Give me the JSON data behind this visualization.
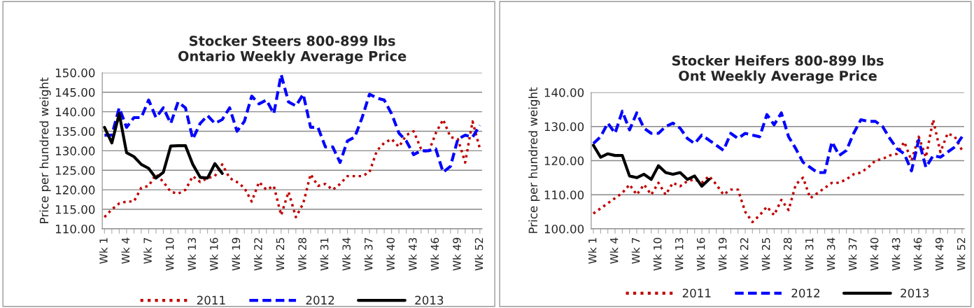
{
  "chart_data": [
    {
      "type": "line",
      "title": "Stocker Steers 800-899 lbs\nOntario Weekly Average Price",
      "ylabel": "Price per hundred weight",
      "categories": [
        "Wk 1",
        null,
        null,
        "Wk 4",
        null,
        null,
        "Wk 7",
        null,
        null,
        "Wk 10",
        null,
        null,
        "Wk 13",
        null,
        null,
        "Wk 16",
        null,
        null,
        "Wk 19",
        null,
        null,
        "Wk 22",
        null,
        null,
        "Wk 25",
        null,
        null,
        "Wk 28",
        null,
        null,
        "Wk 31",
        null,
        null,
        "Wk 34",
        null,
        null,
        "Wk 37",
        null,
        null,
        "Wk 40",
        null,
        null,
        "Wk 43",
        null,
        null,
        "Wk 46",
        null,
        null,
        "Wk 49",
        null,
        null,
        "Wk 52"
      ],
      "series": [
        {
          "name": "2011",
          "color": "#c00000",
          "line_style": "dotted",
          "values": [
            113,
            115,
            116.5,
            117,
            117,
            120.5,
            121,
            124,
            122,
            119.5,
            119,
            120,
            123.5,
            122,
            123,
            123.5,
            126.5,
            123,
            122,
            120.5,
            117,
            122,
            120,
            121,
            113.5,
            119.5,
            113,
            116.5,
            124,
            121,
            121.5,
            120,
            121.5,
            123.5,
            123.5,
            123.5,
            124.5,
            130,
            132,
            133,
            131,
            134,
            135,
            130.5,
            129.5,
            134.5,
            138,
            133.5,
            133,
            127,
            137.5,
            130.5
          ]
        },
        {
          "name": "2012",
          "color": "#0000ff",
          "line_style": "dashed",
          "values": [
            134,
            134,
            141,
            136,
            138.5,
            138.5,
            143,
            138.5,
            141,
            137,
            142.5,
            141,
            133,
            137,
            139,
            137,
            138,
            141,
            135,
            137.5,
            144,
            142,
            143,
            139.5,
            149.5,
            142.5,
            141.5,
            144.5,
            136,
            136,
            131,
            131,
            127,
            132.5,
            133.5,
            138.5,
            144.5,
            143.5,
            143,
            139.5,
            134.5,
            132.5,
            129,
            130,
            130,
            130.5,
            124.5,
            126,
            133,
            134,
            133.5,
            136.5
          ]
        },
        {
          "name": "2013",
          "color": "#000000",
          "line_style": "solid",
          "values": [
            136,
            132,
            139.5,
            129.5,
            128.5,
            126.5,
            125.5,
            123,
            124.5,
            131.2,
            131.3,
            131.3,
            126.5,
            123.2,
            123,
            126.7,
            124.2,
            null,
            null,
            null,
            null,
            null,
            null,
            null,
            null,
            null,
            null,
            null,
            null,
            null,
            null,
            null,
            null,
            null,
            null,
            null,
            null,
            null,
            null,
            null,
            null,
            null,
            null,
            null,
            null,
            null,
            null,
            null,
            null,
            null,
            null,
            null
          ]
        }
      ],
      "ylim": [
        110,
        150
      ],
      "yticks": [
        {
          "value": 110,
          "label": "110.00"
        },
        {
          "value": 115,
          "label": "115.00"
        },
        {
          "value": 120,
          "label": "120.00"
        },
        {
          "value": 125,
          "label": "125.00"
        },
        {
          "value": 130,
          "label": "130.00"
        },
        {
          "value": 135,
          "label": "135.00"
        },
        {
          "value": 140,
          "label": "140.00"
        },
        {
          "value": 145,
          "label": "145.00"
        },
        {
          "value": 150,
          "label": "150.00"
        }
      ],
      "grid": "y",
      "legend": "bottom",
      "marker": "none"
    },
    {
      "type": "line",
      "title": "Stocker Heifers 800-899 lbs\nOnt Weekly Average Price",
      "ylabel": "Price per hundred weight",
      "categories": [
        "Wk 1",
        null,
        null,
        "Wk 4",
        null,
        null,
        "Wk 7",
        null,
        null,
        "Wk 10",
        null,
        null,
        "Wk 13",
        null,
        null,
        "Wk 16",
        null,
        null,
        "Wk 19",
        null,
        null,
        "Wk 22",
        null,
        null,
        "Wk 25",
        null,
        null,
        "Wk 28",
        null,
        null,
        "Wk 31",
        null,
        null,
        "Wk 34",
        null,
        null,
        "Wk 37",
        null,
        null,
        "Wk 40",
        null,
        null,
        "Wk 43",
        null,
        null,
        "Wk 46",
        null,
        null,
        "Wk 49",
        null,
        null,
        "Wk 52"
      ],
      "series": [
        {
          "name": "2011",
          "color": "#c00000",
          "line_style": "dotted",
          "values": [
            104.5,
            106,
            107.5,
            109,
            110.5,
            113,
            110,
            113,
            110,
            113.5,
            110,
            113.5,
            112.5,
            114,
            114.5,
            113.5,
            115.5,
            113,
            110,
            111.5,
            111.5,
            105,
            102,
            104,
            106.5,
            104,
            108.5,
            105.5,
            113,
            115,
            109,
            110.5,
            112,
            113.5,
            113.5,
            114.5,
            116,
            116.5,
            118,
            120,
            120.5,
            121.5,
            122,
            125.5,
            120,
            127,
            121,
            132,
            122.5,
            128,
            127,
            123
          ]
        },
        {
          "name": "2012",
          "color": "#0000ff",
          "line_style": "dashed",
          "values": [
            125,
            127,
            131,
            128,
            134.5,
            129,
            134,
            129.5,
            128,
            128,
            130,
            131,
            129.5,
            126.5,
            125,
            127.5,
            126,
            124.5,
            123,
            128,
            126.5,
            128,
            127.5,
            127,
            133.5,
            130.5,
            134,
            127,
            123.5,
            119.5,
            118,
            116.5,
            116.5,
            125.5,
            121.5,
            123,
            128,
            132,
            131.5,
            131.5,
            130,
            126.5,
            123.5,
            122,
            117,
            126,
            118,
            121.5,
            121,
            122.5,
            124,
            127
          ]
        },
        {
          "name": "2013",
          "color": "#000000",
          "line_style": "solid",
          "values": [
            124.5,
            121,
            122,
            121.5,
            121.5,
            115.5,
            115,
            116,
            114.5,
            118.5,
            116.5,
            116,
            116.5,
            114.5,
            115.5,
            112.5,
            114.5,
            null,
            null,
            null,
            null,
            null,
            null,
            null,
            null,
            null,
            null,
            null,
            null,
            null,
            null,
            null,
            null,
            null,
            null,
            null,
            null,
            null,
            null,
            null,
            null,
            null,
            null,
            null,
            null,
            null,
            null,
            null,
            null,
            null,
            null,
            null
          ]
        }
      ],
      "ylim": [
        100,
        140
      ],
      "yticks": [
        {
          "value": 100,
          "label": "100.00"
        },
        {
          "value": 110,
          "label": "110.00"
        },
        {
          "value": 120,
          "label": "120.00"
        },
        {
          "value": 130,
          "label": "130.00"
        },
        {
          "value": 140,
          "label": "140.00"
        }
      ],
      "grid": "y",
      "legend": "bottom",
      "marker": "none"
    }
  ]
}
